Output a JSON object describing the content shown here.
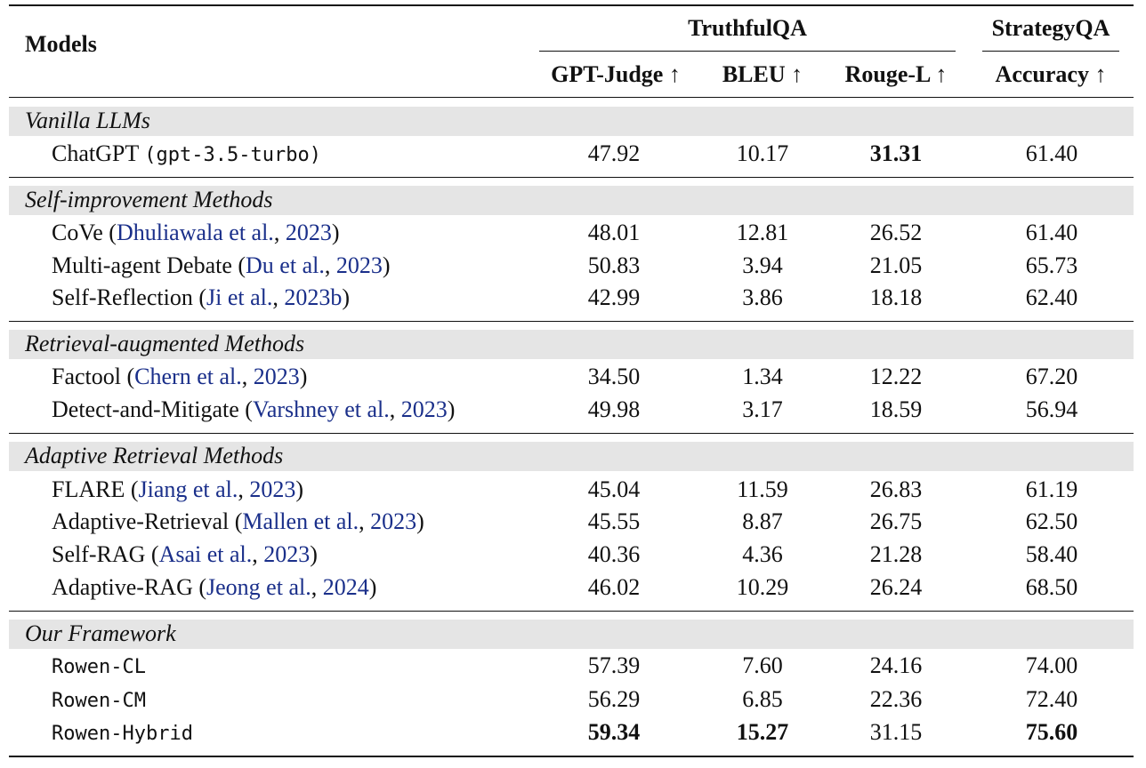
{
  "table": {
    "header": {
      "models": "Models",
      "group1": "TruthfulQA",
      "group2": "StrategyQA",
      "columns": [
        "GPT-Judge ↑",
        "BLEU ↑",
        "Rouge-L ↑",
        "Accuracy ↑"
      ]
    },
    "sections": [
      {
        "title": "Vanilla LLMs",
        "rows": [
          {
            "name": "ChatGPT",
            "mono": "(gpt-3.5-turbo)",
            "values": [
              "47.92",
              "10.17",
              "31.31",
              "61.40"
            ],
            "bold": [
              false,
              false,
              true,
              false
            ]
          }
        ]
      },
      {
        "title": "Self-improvement Methods",
        "rows": [
          {
            "name": "CoVe (",
            "cite": "Dhuliawala et al.",
            "sep": ", ",
            "year": "2023",
            "close": ")",
            "values": [
              "48.01",
              "12.81",
              "26.52",
              "61.40"
            ]
          },
          {
            "name": "Multi-agent Debate (",
            "cite": "Du et al.",
            "sep": ", ",
            "year": "2023",
            "close": ")",
            "values": [
              "50.83",
              "3.94",
              "21.05",
              "65.73"
            ]
          },
          {
            "name": "Self-Reflection (",
            "cite": "Ji et al.",
            "sep": ", ",
            "year": "2023b",
            "close": ")",
            "values": [
              "42.99",
              "3.86",
              "18.18",
              "62.40"
            ]
          }
        ]
      },
      {
        "title": "Retrieval-augmented Methods",
        "rows": [
          {
            "name": "Factool (",
            "cite": "Chern et al.",
            "sep": ", ",
            "year": "2023",
            "close": ")",
            "values": [
              "34.50",
              "1.34",
              "12.22",
              "67.20"
            ]
          },
          {
            "name": "Detect-and-Mitigate (",
            "cite": "Varshney et al.",
            "sep": ", ",
            "year": "2023",
            "close": ")",
            "values": [
              "49.98",
              "3.17",
              "18.59",
              "56.94"
            ]
          }
        ]
      },
      {
        "title": "Adaptive Retrieval Methods",
        "rows": [
          {
            "name": "FLARE (",
            "cite": "Jiang et al.",
            "sep": ", ",
            "year": "2023",
            "close": ")",
            "values": [
              "45.04",
              "11.59",
              "26.83",
              "61.19"
            ]
          },
          {
            "name": "Adaptive-Retrieval (",
            "cite": "Mallen et al.",
            "sep": ", ",
            "year": "2023",
            "close": ")",
            "values": [
              "45.55",
              "8.87",
              "26.75",
              "62.50"
            ]
          },
          {
            "name": "Self-RAG (",
            "cite": "Asai et al.",
            "sep": ", ",
            "year": "2023",
            "close": ")",
            "values": [
              "40.36",
              "4.36",
              "21.28",
              "58.40"
            ]
          },
          {
            "name": "Adaptive-RAG (",
            "cite": "Jeong et al.",
            "sep": ", ",
            "year": "2024",
            "close": ")",
            "values": [
              "46.02",
              "10.29",
              "26.24",
              "68.50"
            ]
          }
        ]
      },
      {
        "title": "Our Framework",
        "rows": [
          {
            "mono": "Rowen-CL",
            "values": [
              "57.39",
              "7.60",
              "24.16",
              "74.00"
            ]
          },
          {
            "mono": "Rowen-CM",
            "values": [
              "56.29",
              "6.85",
              "22.36",
              "72.40"
            ]
          },
          {
            "mono": "Rowen-Hybrid",
            "values": [
              "59.34",
              "15.27",
              "31.15",
              "75.60"
            ],
            "bold": [
              true,
              true,
              false,
              true
            ]
          }
        ]
      }
    ]
  }
}
